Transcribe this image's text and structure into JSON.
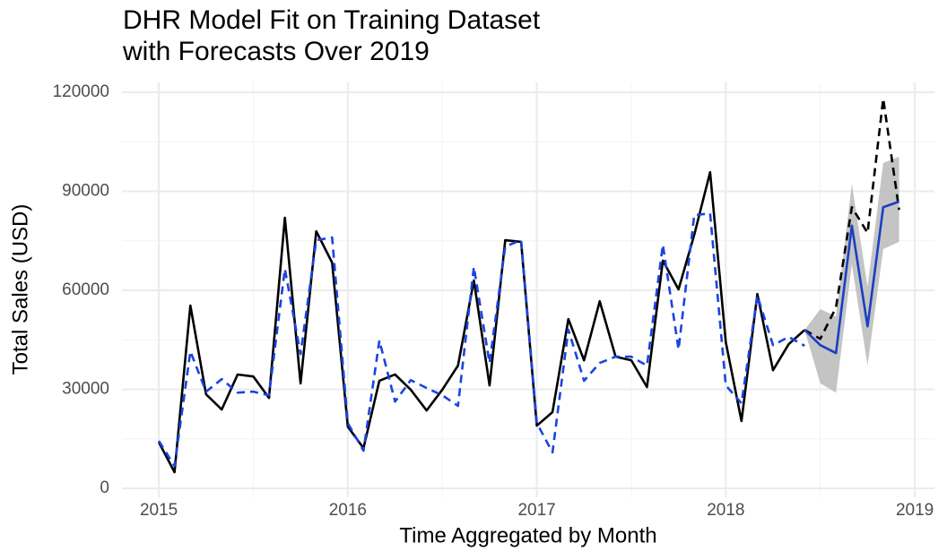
{
  "chart_data": {
    "type": "line",
    "title": [
      "DHR Model Fit on Training Dataset",
      "with Forecasts Over 2019"
    ],
    "x_label": "Time Aggregated by Month",
    "y_label": "Total Sales (USD)",
    "x": [
      2015,
      2015.083,
      2015.167,
      2015.25,
      2015.333,
      2015.417,
      2015.5,
      2015.583,
      2015.667,
      2015.75,
      2015.833,
      2015.917,
      2016,
      2016.083,
      2016.167,
      2016.25,
      2016.333,
      2016.417,
      2016.5,
      2016.583,
      2016.667,
      2016.75,
      2016.833,
      2016.917,
      2017,
      2017.083,
      2017.167,
      2017.25,
      2017.333,
      2017.417,
      2017.5,
      2017.583,
      2017.667,
      2017.75,
      2017.833,
      2017.917,
      2018,
      2018.083,
      2018.167,
      2018.25,
      2018.333,
      2018.417,
      2018.5,
      2018.583,
      2018.667,
      2018.75,
      2018.833,
      2018.917
    ],
    "band": {
      "color": "#bebebe",
      "lower": [
        null,
        null,
        null,
        null,
        null,
        null,
        null,
        null,
        null,
        null,
        null,
        null,
        null,
        null,
        null,
        null,
        null,
        null,
        null,
        null,
        null,
        null,
        null,
        null,
        null,
        null,
        null,
        null,
        null,
        null,
        null,
        null,
        null,
        null,
        null,
        null,
        null,
        null,
        null,
        null,
        null,
        48000,
        31800,
        29000,
        67900,
        37200,
        72500,
        74700
      ],
      "upper": [
        null,
        null,
        null,
        null,
        null,
        null,
        null,
        null,
        null,
        null,
        null,
        null,
        null,
        null,
        null,
        null,
        null,
        null,
        null,
        null,
        null,
        null,
        null,
        null,
        null,
        null,
        null,
        null,
        null,
        null,
        null,
        null,
        null,
        null,
        null,
        null,
        null,
        null,
        null,
        null,
        null,
        48000,
        54300,
        52100,
        92300,
        61100,
        98600,
        100500
      ]
    },
    "series": [
      {
        "color": "#000000",
        "dash": false,
        "values": [
          14000,
          4900,
          55400,
          28500,
          23900,
          34500,
          33900,
          27400,
          82000,
          31800,
          77900,
          68400,
          18700,
          12200,
          32600,
          34500,
          29900,
          23600,
          29900,
          37200,
          63000,
          31200,
          75200,
          74700,
          19000,
          23100,
          51300,
          38800,
          56700,
          39900,
          38800,
          30700,
          69000,
          60300,
          76800,
          95800,
          44300,
          20400,
          58900,
          35800,
          43700,
          48000,
          null,
          null,
          null,
          null,
          null,
          null
        ]
      },
      {
        "color": "#000000",
        "dash": true,
        "values": [
          null,
          null,
          null,
          null,
          null,
          null,
          null,
          null,
          null,
          null,
          null,
          null,
          null,
          null,
          null,
          null,
          null,
          null,
          null,
          null,
          null,
          null,
          null,
          null,
          null,
          null,
          null,
          null,
          null,
          null,
          null,
          null,
          null,
          null,
          null,
          null,
          null,
          null,
          null,
          null,
          null,
          48000,
          45300,
          54800,
          85200,
          77400,
          118100,
          84400
        ]
      },
      {
        "color": "#1a44e0",
        "dash": true,
        "values": [
          14400,
          6800,
          41500,
          29300,
          33100,
          29000,
          29300,
          28200,
          66500,
          40700,
          75200,
          76000,
          19800,
          11400,
          44800,
          26300,
          32800,
          30400,
          28200,
          25000,
          67100,
          38000,
          73300,
          75200,
          19800,
          10900,
          48100,
          32600,
          38000,
          39900,
          39900,
          37200,
          73800,
          42100,
          82800,
          83300,
          31200,
          25800,
          58400,
          43400,
          45900,
          43200,
          null,
          null,
          null,
          null,
          null,
          null
        ]
      },
      {
        "color": "#1a3fc4",
        "dash": false,
        "values": [
          null,
          null,
          null,
          null,
          null,
          null,
          null,
          null,
          null,
          null,
          null,
          null,
          null,
          null,
          null,
          null,
          null,
          null,
          null,
          null,
          null,
          null,
          null,
          null,
          null,
          null,
          null,
          null,
          null,
          null,
          null,
          null,
          null,
          null,
          null,
          null,
          null,
          null,
          null,
          null,
          null,
          48000,
          43400,
          41000,
          79600,
          49100,
          85200,
          86900
        ]
      }
    ],
    "xlim": [
      2014.805,
      2019.104
    ],
    "xticks": [
      2015,
      2016,
      2017,
      2018,
      2019
    ],
    "ylim": [
      -2700,
      123000
    ],
    "yticks": [
      0,
      30000,
      60000,
      90000,
      120000
    ],
    "grid": true
  }
}
